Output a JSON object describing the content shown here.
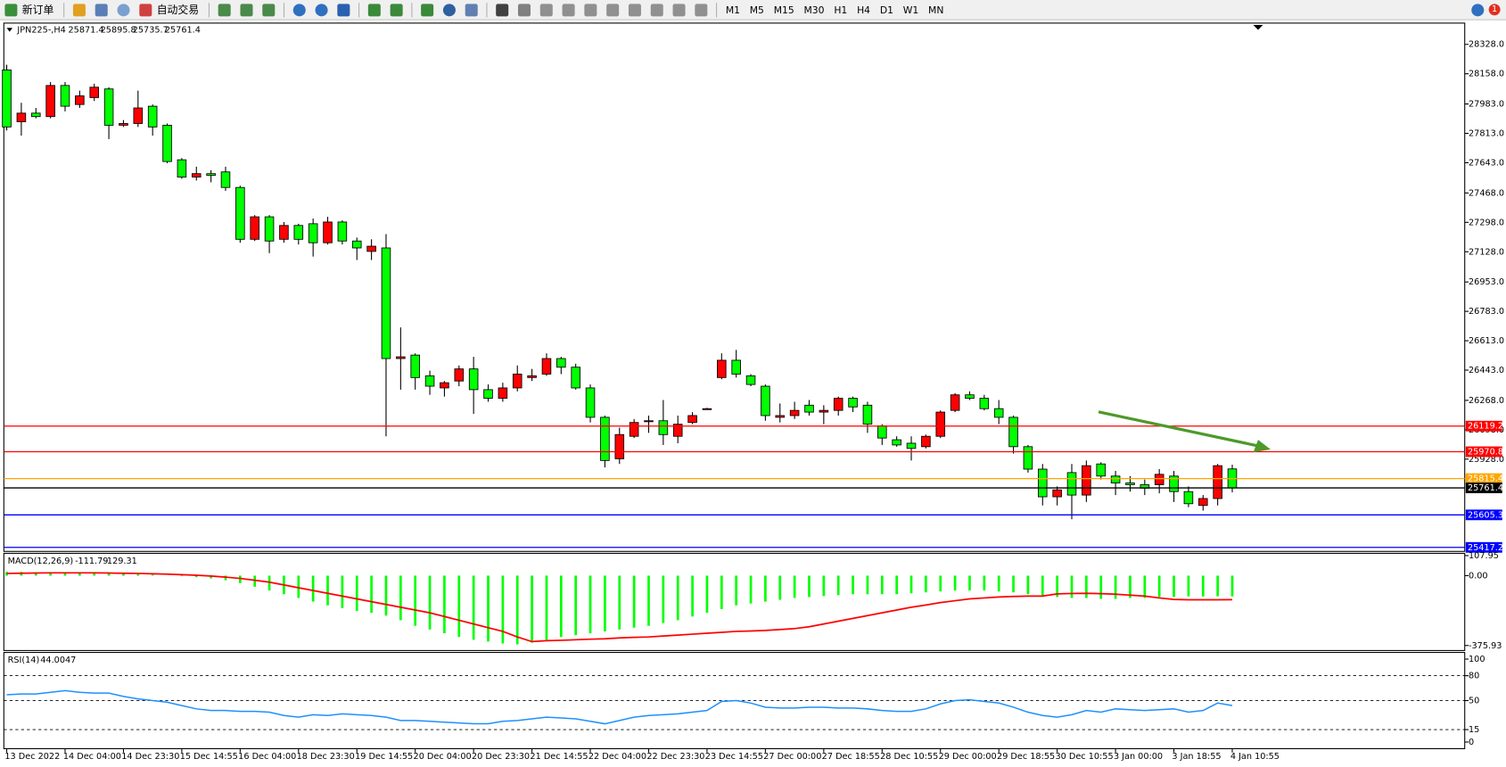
{
  "toolbar": {
    "new_order": "新订单",
    "auto_trading": "自动交易",
    "timeframes": [
      "M1",
      "M5",
      "M15",
      "M30",
      "H1",
      "H4",
      "D1",
      "W1",
      "MN"
    ]
  },
  "notification": 1,
  "chart_data": [
    {
      "type": "candlestick",
      "title": "JPN225-,H4",
      "categories": [
        "13 Dec 2022",
        null,
        null,
        null,
        "14 Dec 04:00",
        null,
        null,
        null,
        "14 Dec 23:30",
        null,
        null,
        null,
        "15 Dec 14:55",
        null,
        null,
        null,
        "16 Dec 04:00",
        null,
        null,
        null,
        "18 Dec 23:30",
        null,
        null,
        null,
        "19 Dec 14:55",
        null,
        null,
        null,
        "20 Dec 04:00",
        null,
        null,
        null,
        "20 Dec 23:30",
        null,
        null,
        null,
        "21 Dec 14:55",
        null,
        null,
        null,
        "22 Dec 04:00",
        null,
        null,
        null,
        "22 Dec 23:30",
        null,
        null,
        null,
        "23 Dec 14:55",
        null,
        null,
        null,
        "27 Dec 00:00",
        null,
        null,
        null,
        "27 Dec 18:55",
        null,
        null,
        null,
        "28 Dec 10:55",
        null,
        null,
        null,
        "29 Dec 00:00",
        null,
        null,
        null,
        "29 Dec 18:55",
        null,
        null,
        null,
        "30 Dec 10:55",
        null,
        null,
        null,
        "3 Jan 00:00",
        null,
        null,
        null,
        "3 Jan 18:55",
        null,
        null,
        null,
        "4 Jan 10:55"
      ],
      "ohlc": [
        [
          28180,
          28210,
          27830,
          27850
        ],
        [
          27880,
          27990,
          27800,
          27930
        ],
        [
          27930,
          27960,
          27900,
          27910
        ],
        [
          27910,
          28110,
          27900,
          28090
        ],
        [
          28090,
          28110,
          27940,
          27970
        ],
        [
          27980,
          28060,
          27960,
          28030
        ],
        [
          28020,
          28100,
          28000,
          28080
        ],
        [
          28070,
          28080,
          27780,
          27860
        ],
        [
          27860,
          27890,
          27850,
          27870
        ],
        [
          27870,
          28060,
          27850,
          27960
        ],
        [
          27970,
          27980,
          27800,
          27850
        ],
        [
          27860,
          27870,
          27640,
          27650
        ],
        [
          27660,
          27670,
          27550,
          27560
        ],
        [
          27560,
          27620,
          27540,
          27580
        ],
        [
          27580,
          27600,
          27530,
          27570
        ],
        [
          27590,
          27620,
          27480,
          27500
        ],
        [
          27500,
          27510,
          27180,
          27200
        ],
        [
          27200,
          27340,
          27190,
          27330
        ],
        [
          27330,
          27340,
          27120,
          27190
        ],
        [
          27200,
          27300,
          27180,
          27280
        ],
        [
          27280,
          27290,
          27170,
          27200
        ],
        [
          27290,
          27320,
          27100,
          27180
        ],
        [
          27180,
          27330,
          27170,
          27300
        ],
        [
          27300,
          27310,
          27170,
          27190
        ],
        [
          27190,
          27210,
          27080,
          27150
        ],
        [
          27130,
          27200,
          27080,
          27160
        ],
        [
          27150,
          27230,
          26060,
          26510
        ],
        [
          26510,
          26690,
          26330,
          26520
        ],
        [
          26530,
          26540,
          26330,
          26400
        ],
        [
          26410,
          26440,
          26300,
          26350
        ],
        [
          26340,
          26380,
          26290,
          26370
        ],
        [
          26380,
          26470,
          26350,
          26450
        ],
        [
          26450,
          26520,
          26190,
          26330
        ],
        [
          26330,
          26360,
          26260,
          26280
        ],
        [
          26280,
          26370,
          26260,
          26340
        ],
        [
          26340,
          26470,
          26320,
          26420
        ],
        [
          26400,
          26450,
          26380,
          26410
        ],
        [
          26420,
          26540,
          26410,
          26510
        ],
        [
          26510,
          26520,
          26420,
          26460
        ],
        [
          26460,
          26480,
          26330,
          26340
        ],
        [
          26340,
          26360,
          26140,
          26170
        ],
        [
          26170,
          26180,
          25880,
          25920
        ],
        [
          25930,
          26110,
          25900,
          26070
        ],
        [
          26060,
          26160,
          26050,
          26140
        ],
        [
          26150,
          26180,
          26080,
          26150
        ],
        [
          26150,
          26270,
          26010,
          26070
        ],
        [
          26060,
          26180,
          26020,
          26130
        ],
        [
          26140,
          26200,
          26130,
          26180
        ],
        [
          26220,
          26225,
          26215,
          26220
        ],
        [
          26400,
          26540,
          26390,
          26500
        ],
        [
          26500,
          26560,
          26400,
          26420
        ],
        [
          26410,
          26420,
          26350,
          26360
        ],
        [
          26350,
          26360,
          26150,
          26180
        ],
        [
          26170,
          26250,
          26140,
          26180
        ],
        [
          26180,
          26260,
          26160,
          26210
        ],
        [
          26240,
          26270,
          26180,
          26200
        ],
        [
          26200,
          26240,
          26130,
          26210
        ],
        [
          26210,
          26290,
          26180,
          26280
        ],
        [
          26280,
          26290,
          26200,
          26230
        ],
        [
          26240,
          26260,
          26080,
          26130
        ],
        [
          26120,
          26130,
          26010,
          26050
        ],
        [
          26040,
          26060,
          26000,
          26010
        ],
        [
          26020,
          26060,
          25920,
          25990
        ],
        [
          26000,
          26070,
          25990,
          26060
        ],
        [
          26060,
          26210,
          26050,
          26200
        ],
        [
          26210,
          26310,
          26200,
          26300
        ],
        [
          26300,
          26320,
          26270,
          26280
        ],
        [
          26280,
          26300,
          26210,
          26220
        ],
        [
          26220,
          26270,
          26130,
          26170
        ],
        [
          26170,
          26180,
          25960,
          26000
        ],
        [
          26000,
          26010,
          25850,
          25870
        ],
        [
          25870,
          25900,
          25660,
          25710
        ],
        [
          25710,
          25770,
          25660,
          25750
        ],
        [
          25850,
          25900,
          25580,
          25720
        ],
        [
          25720,
          25920,
          25680,
          25890
        ],
        [
          25900,
          25910,
          25810,
          25830
        ],
        [
          25830,
          25860,
          25720,
          25790
        ],
        [
          25790,
          25830,
          25740,
          25780
        ],
        [
          25780,
          25810,
          25720,
          25760
        ],
        [
          25780,
          25870,
          25730,
          25840
        ],
        [
          25830,
          25860,
          25680,
          25740
        ],
        [
          25740,
          25770,
          25650,
          25670
        ],
        [
          25660,
          25720,
          25630,
          25700
        ],
        [
          25700,
          25900,
          25660,
          25890
        ],
        [
          25871.4,
          25895.8,
          25735.7,
          25761.4
        ]
      ],
      "up_color": "#ff0000",
      "down_color": "#00ff00",
      "ylim": [
        25394,
        28451
      ],
      "yticks": [
        {
          "value": 28328,
          "label": "28328.0"
        },
        {
          "value": 28158,
          "label": "28158.0"
        },
        {
          "value": 27983,
          "label": "27983.0"
        },
        {
          "value": 27813,
          "label": "27813.0"
        },
        {
          "value": 27643,
          "label": "27643.0"
        },
        {
          "value": 27468,
          "label": "27468.0"
        },
        {
          "value": 27298,
          "label": "27298.0"
        },
        {
          "value": 27128,
          "label": "27128.0"
        },
        {
          "value": 26953,
          "label": "26953.0"
        },
        {
          "value": 26783,
          "label": "26783.0"
        },
        {
          "value": 26613,
          "label": "26613.0"
        },
        {
          "value": 26443,
          "label": "26443.0"
        },
        {
          "value": 26268,
          "label": "26268.0"
        },
        {
          "value": 26098,
          "label": "26098.0"
        },
        {
          "value": 25928,
          "label": "25928.0"
        }
      ],
      "levels": [
        {
          "value": 26119.2,
          "color": "#ff0000"
        },
        {
          "value": 25970.8,
          "color": "#ff0000"
        },
        {
          "value": 25815.4,
          "color": "#ffa500"
        },
        {
          "value": 25761.4,
          "color": "#000000"
        },
        {
          "value": 25605.3,
          "color": "#0000ff"
        },
        {
          "value": 25417.2,
          "color": "#0000ff"
        }
      ]
    },
    {
      "type": "macd",
      "title": "MACD(12,26,9)",
      "histogram": {
        "color": "#00ff00",
        "values": [
          20,
          20,
          18,
          18,
          16,
          15,
          14,
          12,
          10,
          8,
          5,
          0,
          -3,
          -8,
          -15,
          -25,
          -40,
          -60,
          -80,
          -100,
          -120,
          -140,
          -160,
          -175,
          -190,
          -200,
          -215,
          -240,
          -270,
          -290,
          -310,
          -330,
          -345,
          -355,
          -365,
          -370,
          -360,
          -345,
          -330,
          -320,
          -310,
          -300,
          -290,
          -280,
          -270,
          -255,
          -240,
          -220,
          -200,
          -180,
          -160,
          -150,
          -140,
          -130,
          -120,
          -115,
          -110,
          -105,
          -100,
          -100,
          -100,
          -100,
          -95,
          -90,
          -85,
          -80,
          -80,
          -80,
          -85,
          -90,
          -100,
          -110,
          -115,
          -120,
          -120,
          -125,
          -125,
          -120,
          -120,
          -115,
          -115,
          -112,
          -112,
          -111,
          -111.79
        ]
      },
      "signal": {
        "color": "#ff0000",
        "values": [
          12,
          13,
          14,
          15,
          15,
          15,
          15,
          14,
          13,
          12,
          10,
          8,
          5,
          2,
          -2,
          -8,
          -15,
          -25,
          -35,
          -50,
          -65,
          -80,
          -95,
          -110,
          -125,
          -140,
          -155,
          -170,
          -185,
          -200,
          -220,
          -240,
          -260,
          -280,
          -300,
          -330,
          -355,
          -350,
          -348,
          -345,
          -342,
          -340,
          -335,
          -332,
          -330,
          -325,
          -320,
          -315,
          -310,
          -305,
          -300,
          -298,
          -295,
          -290,
          -285,
          -275,
          -260,
          -245,
          -230,
          -215,
          -200,
          -185,
          -170,
          -158,
          -145,
          -135,
          -125,
          -120,
          -115,
          -112,
          -110,
          -110,
          -98,
          -96,
          -95,
          -97,
          -100,
          -105,
          -110,
          -120,
          -128,
          -130,
          -130,
          -130,
          -129.31
        ]
      },
      "ylim": [
        -403,
        120
      ],
      "yticks": [
        107.95,
        {
          "value": 0,
          "label": "0.00"
        },
        -375.93
      ]
    },
    {
      "type": "rsi",
      "title": "RSI(14)",
      "color": "#1e90ff",
      "values": [
        57,
        58,
        58,
        60,
        62,
        60,
        59,
        59,
        55,
        52,
        50,
        48,
        44,
        40,
        38,
        38,
        37,
        37,
        36,
        32,
        30,
        33,
        32,
        34,
        33,
        32,
        30,
        26,
        26,
        25,
        24,
        23,
        22,
        22,
        25,
        26,
        28,
        30,
        29,
        28,
        25,
        22,
        26,
        30,
        32,
        33,
        34,
        36,
        38,
        49,
        50,
        47,
        42,
        41,
        41,
        42,
        42,
        41,
        41,
        40,
        38,
        37,
        37,
        40,
        46,
        50,
        51,
        49,
        47,
        42,
        36,
        32,
        30,
        33,
        38,
        36,
        40,
        39,
        38,
        39,
        40,
        36,
        38,
        47,
        44.0047
      ],
      "ylim": [
        -8,
        108
      ],
      "yticks": [
        100,
        80,
        50,
        15,
        0
      ],
      "levels": [
        80,
        50,
        15
      ]
    }
  ]
}
